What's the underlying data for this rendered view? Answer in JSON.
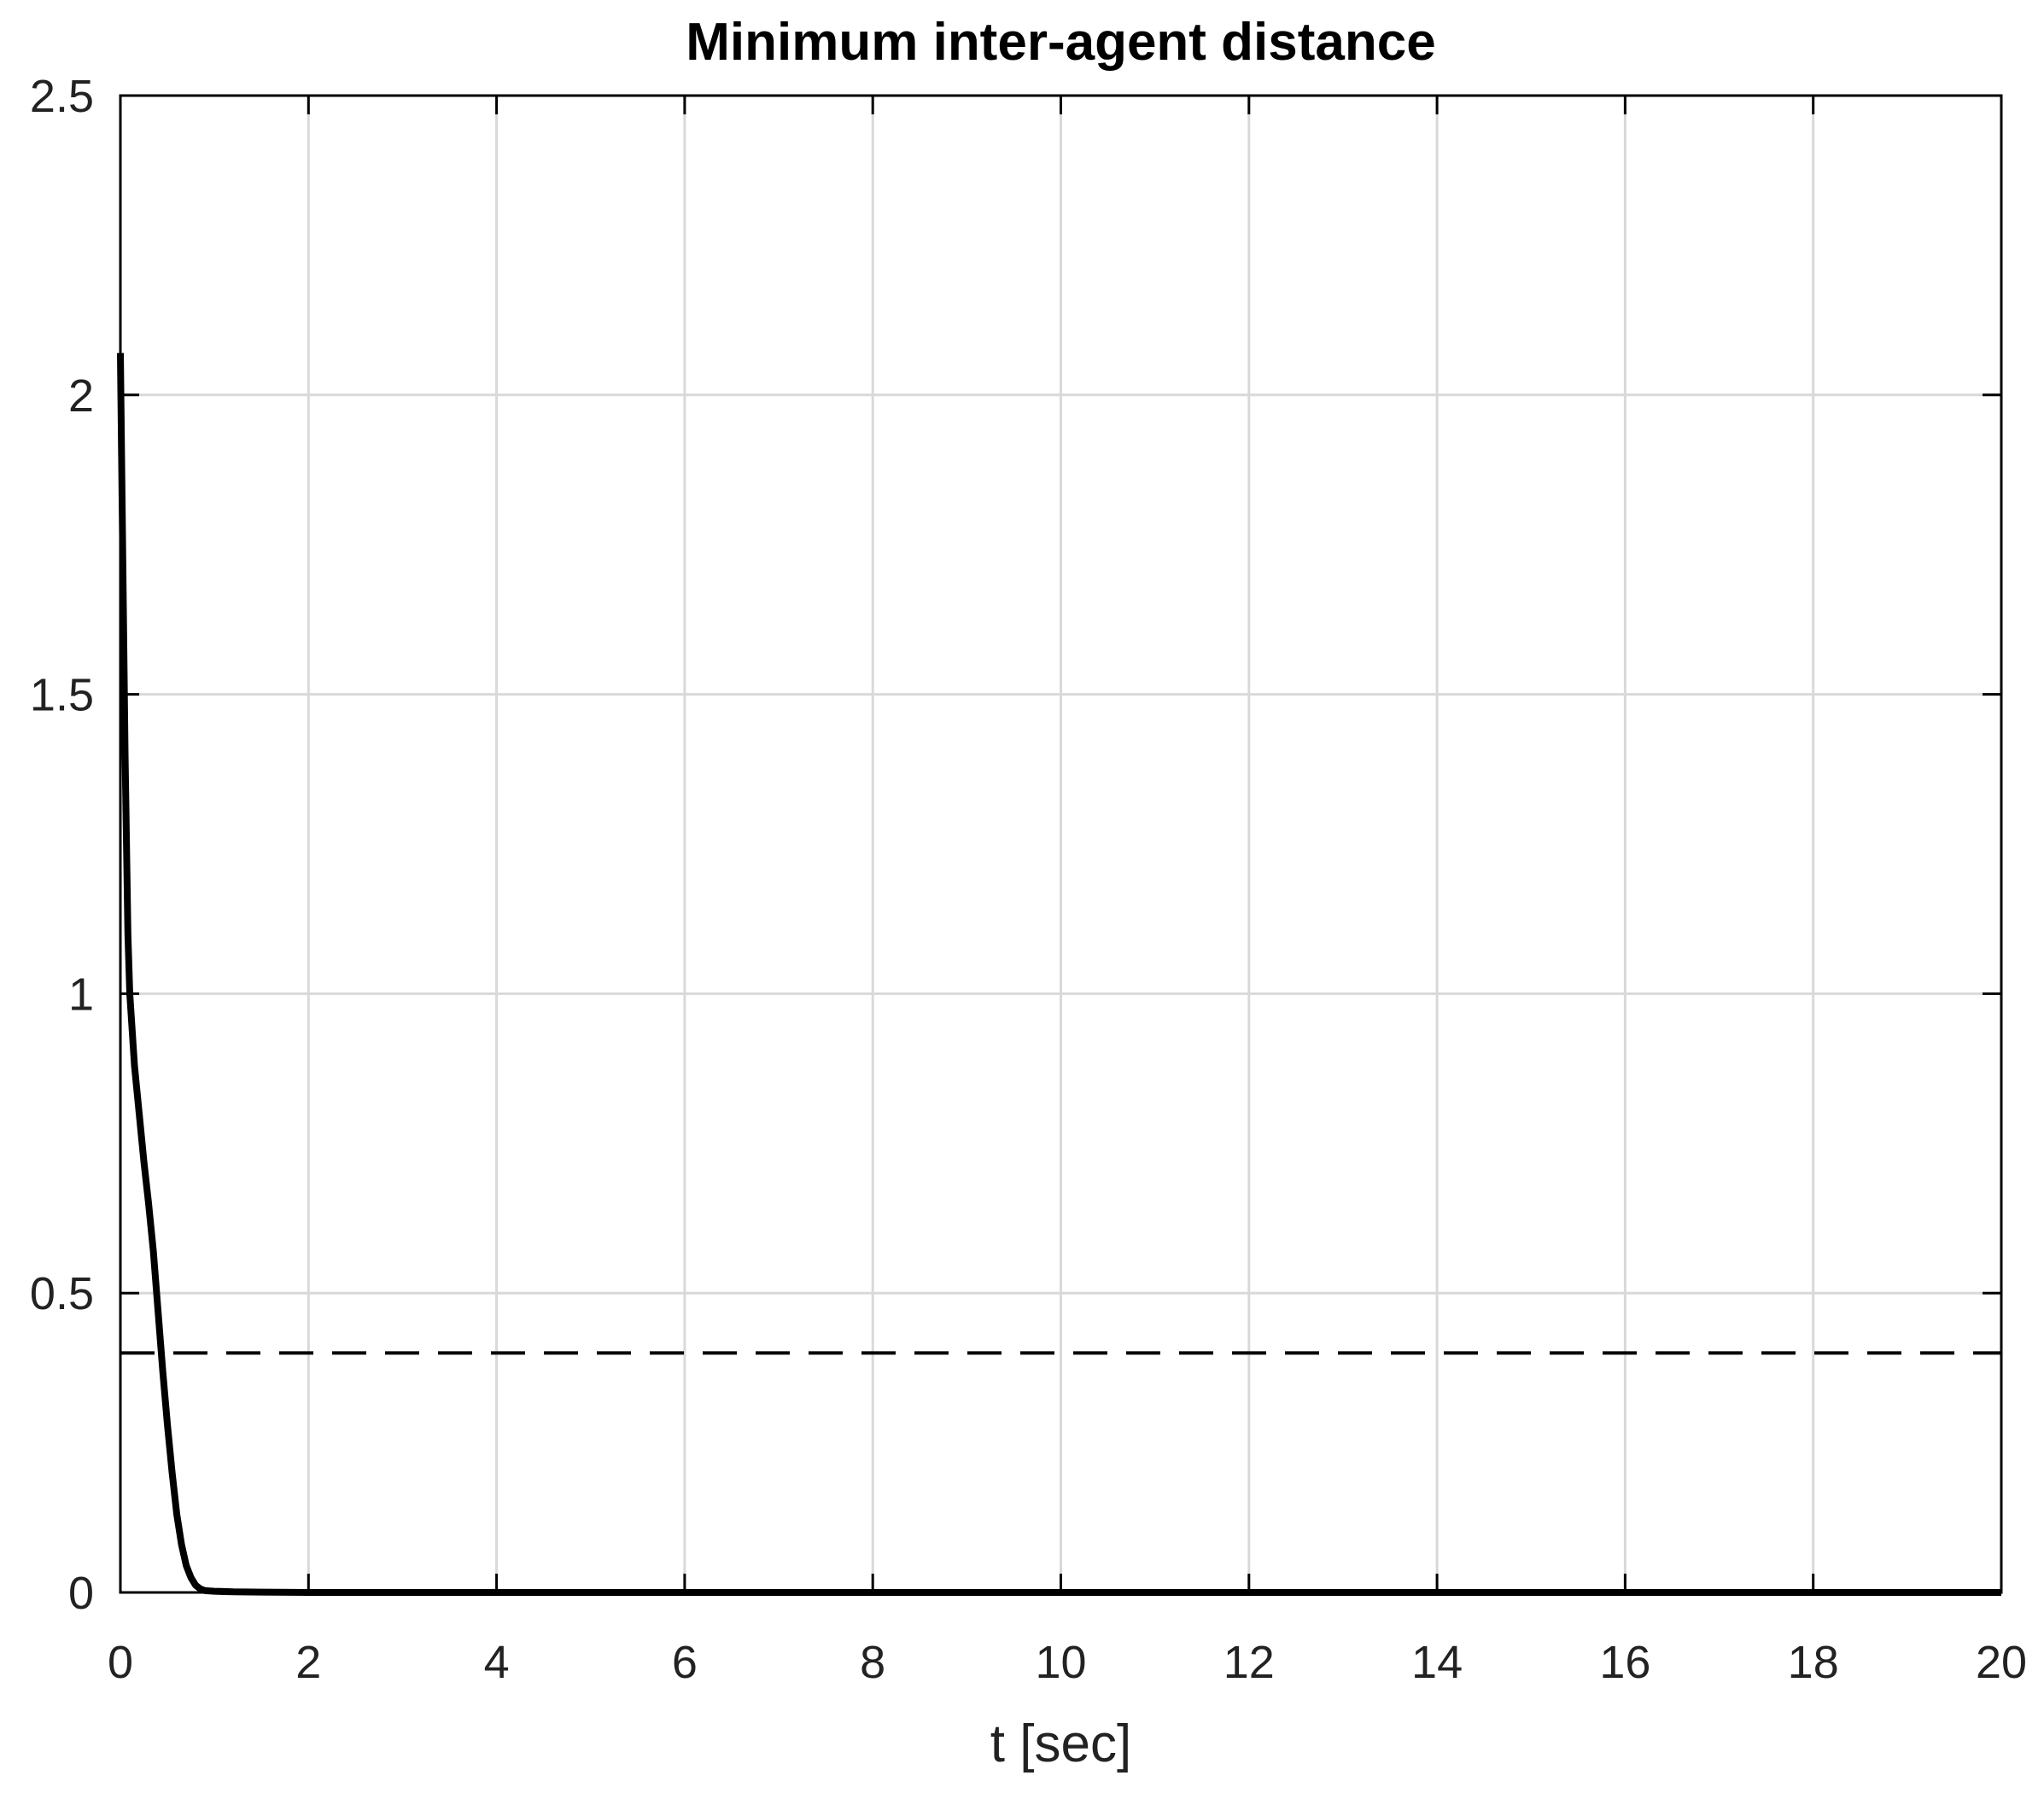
{
  "chart_data": {
    "type": "line",
    "title": "Minimum inter-agent distance",
    "xlabel": "t [sec]",
    "ylabel": "",
    "xlim": [
      0,
      20
    ],
    "ylim": [
      0,
      2.5
    ],
    "xticks": [
      0,
      2,
      4,
      6,
      8,
      10,
      12,
      14,
      16,
      18,
      20
    ],
    "yticks": [
      0,
      0.5,
      1,
      1.5,
      2,
      2.5
    ],
    "xtick_labels": [
      "0",
      "2",
      "4",
      "6",
      "8",
      "10",
      "12",
      "14",
      "16",
      "18",
      "20"
    ],
    "ytick_labels": [
      "0",
      "0.5",
      "1",
      "1.5",
      "2",
      "2.5"
    ],
    "grid": true,
    "colors": {
      "line": "#000000",
      "grid": "#d9d9d9",
      "axes": "#000000"
    },
    "series": [
      {
        "style": "solid",
        "x": [
          0,
          0.02,
          0.05,
          0.08,
          0.1,
          0.15,
          0.2,
          0.25,
          0.3,
          0.35,
          0.4,
          0.45,
          0.5,
          0.55,
          0.6,
          0.65,
          0.7,
          0.75,
          0.8,
          0.85,
          0.9,
          1.0,
          1.2,
          1.5,
          2,
          3,
          5,
          10,
          15,
          20
        ],
        "y": [
          2.07,
          1.8,
          1.4,
          1.1,
          1.0,
          0.88,
          0.8,
          0.72,
          0.65,
          0.57,
          0.47,
          0.37,
          0.28,
          0.2,
          0.13,
          0.08,
          0.045,
          0.025,
          0.012,
          0.006,
          0.003,
          0.002,
          0.001,
          0.0005,
          0,
          0,
          0,
          0,
          0,
          0
        ]
      },
      {
        "style": "dashed",
        "x": [
          0,
          20
        ],
        "y": [
          0.4,
          0.4
        ]
      }
    ]
  }
}
